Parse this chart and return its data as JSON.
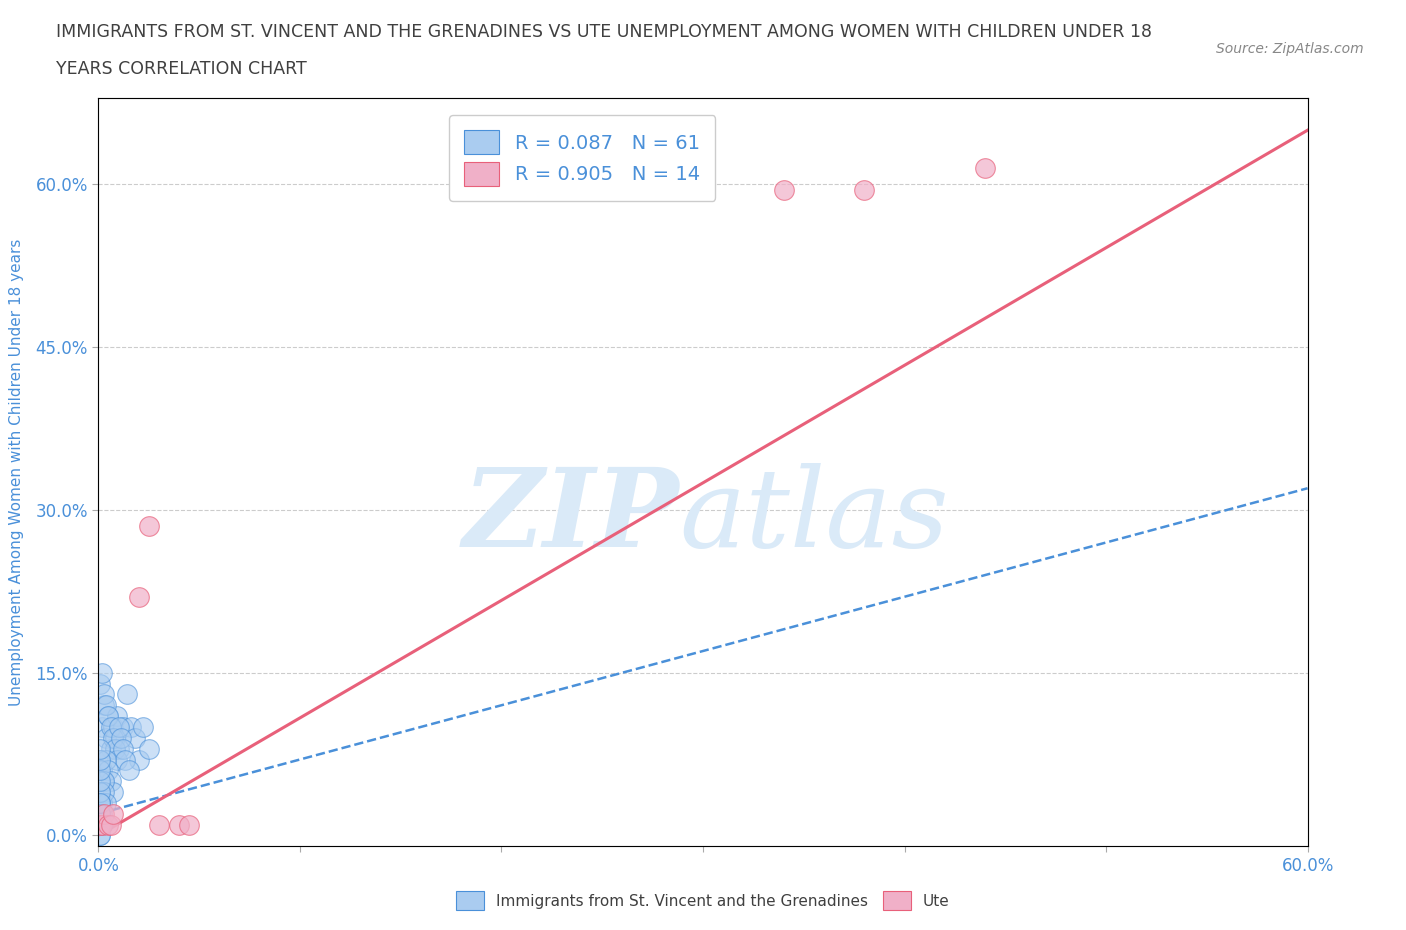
{
  "title_line1": "IMMIGRANTS FROM ST. VINCENT AND THE GRENADINES VS UTE UNEMPLOYMENT AMONG WOMEN WITH CHILDREN UNDER 18",
  "title_line2": "YEARS CORRELATION CHART",
  "source_text": "Source: ZipAtlas.com",
  "xlabel": "Immigrants from St. Vincent and the Grenadines",
  "ylabel": "Unemployment Among Women with Children Under 18 years",
  "xlim": [
    0,
    0.6
  ],
  "ylim": [
    -0.01,
    0.68
  ],
  "xticks": [
    0.0,
    0.1,
    0.2,
    0.3,
    0.4,
    0.5,
    0.6
  ],
  "xtick_labels": [
    "0.0%",
    "",
    "",
    "",
    "",
    "",
    "60.0%"
  ],
  "ytick_labels": [
    "0.0%",
    "15.0%",
    "30.0%",
    "45.0%",
    "60.0%"
  ],
  "yticks": [
    0.0,
    0.15,
    0.3,
    0.45,
    0.6
  ],
  "legend_r1": "R = 0.087   N = 61",
  "legend_r2": "R = 0.905   N = 14",
  "blue_color": "#aaccf0",
  "pink_color": "#f0b0c8",
  "blue_line_color": "#4a90d9",
  "pink_line_color": "#e8607a",
  "title_color": "#404040",
  "axis_label_color": "#4a90d9",
  "watermark_color": "#daeaf8",
  "blue_scatter_x": [
    0.002,
    0.003,
    0.004,
    0.005,
    0.006,
    0.007,
    0.008,
    0.009,
    0.01,
    0.012,
    0.014,
    0.016,
    0.018,
    0.02,
    0.022,
    0.025,
    0.001,
    0.002,
    0.003,
    0.004,
    0.005,
    0.006,
    0.007,
    0.008,
    0.009,
    0.01,
    0.011,
    0.012,
    0.013,
    0.015,
    0.001,
    0.002,
    0.003,
    0.004,
    0.005,
    0.006,
    0.007,
    0.001,
    0.002,
    0.003,
    0.001,
    0.002,
    0.003,
    0.004,
    0.001,
    0.002,
    0.001,
    0.001,
    0.002,
    0.001,
    0.001,
    0.001,
    0.001,
    0.001,
    0.001,
    0.001,
    0.001,
    0.002,
    0.001,
    0.001,
    0.001
  ],
  "blue_scatter_y": [
    0.1,
    0.12,
    0.09,
    0.11,
    0.08,
    0.1,
    0.09,
    0.11,
    0.08,
    0.1,
    0.13,
    0.1,
    0.09,
    0.07,
    0.1,
    0.08,
    0.14,
    0.15,
    0.13,
    0.12,
    0.11,
    0.1,
    0.09,
    0.08,
    0.07,
    0.1,
    0.09,
    0.08,
    0.07,
    0.06,
    0.07,
    0.06,
    0.05,
    0.07,
    0.06,
    0.05,
    0.04,
    0.04,
    0.03,
    0.05,
    0.03,
    0.02,
    0.04,
    0.03,
    0.02,
    0.01,
    0.03,
    0.02,
    0.01,
    0.04,
    0.05,
    0.06,
    0.07,
    0.08,
    0.01,
    0.02,
    0.0,
    0.01,
    0.0,
    0.02,
    0.03
  ],
  "pink_scatter_x": [
    0.001,
    0.002,
    0.003,
    0.005,
    0.006,
    0.007,
    0.02,
    0.025,
    0.03,
    0.04,
    0.045,
    0.34,
    0.38,
    0.44
  ],
  "pink_scatter_y": [
    0.01,
    0.01,
    0.02,
    0.01,
    0.01,
    0.02,
    0.22,
    0.285,
    0.01,
    0.01,
    0.01,
    0.595,
    0.595,
    0.615
  ],
  "blue_trend_x": [
    0.0,
    0.6
  ],
  "blue_trend_y": [
    0.02,
    0.32
  ],
  "pink_trend_x": [
    0.0,
    0.6
  ],
  "pink_trend_y": [
    0.0,
    0.65
  ]
}
